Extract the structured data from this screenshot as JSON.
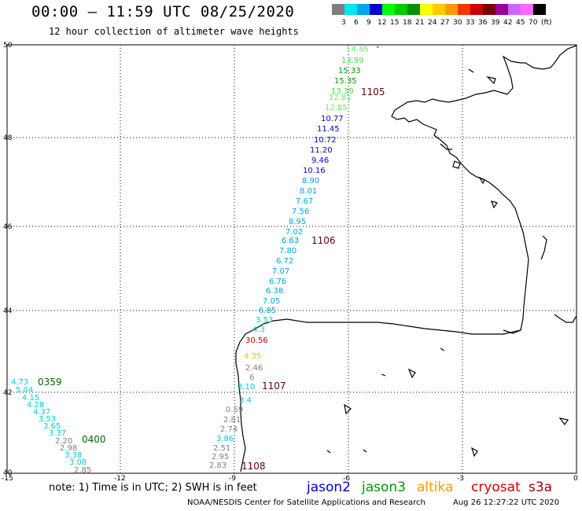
{
  "header": {
    "title": "00:00 – 11:59 UTC 08/25/2020",
    "subtitle": "12 hour collection of altimeter wave heights"
  },
  "legend": {
    "unit": "(ft)",
    "colors": [
      "#7f7f7f",
      "#00e5ee",
      "#00a6e6",
      "#0000d7",
      "#00ff00",
      "#00cc00",
      "#009200",
      "#ffff00",
      "#ffcc00",
      "#ff9900",
      "#ff3300",
      "#cc0000",
      "#7a0000",
      "#990099",
      "#cc66ff",
      "#ff66ff",
      "#000000"
    ],
    "ticks": [
      "3",
      "6",
      "9",
      "12",
      "15",
      "18",
      "21",
      "24",
      "27",
      "30",
      "33",
      "36",
      "39",
      "42",
      "45",
      "70"
    ]
  },
  "axes": {
    "x_labels": [
      "-15",
      "-12",
      "-9",
      "-6",
      "-3",
      "0"
    ],
    "y_labels": [
      "50",
      "48",
      "46",
      "44",
      "42",
      "40"
    ],
    "lon_range": [
      -15,
      0
    ],
    "lat_range": [
      40,
      50
    ],
    "grid": "dotted"
  },
  "tracks": {
    "main_track": {
      "pass_labels": [
        "1105",
        "1106",
        "1107",
        "1108"
      ],
      "values": [
        "14.45",
        "13.99",
        "15.33",
        "15.35",
        "13.39",
        "12.81",
        "12.85",
        "10.77",
        "11.45",
        "10.72",
        "11.20",
        "9.46",
        "10.16",
        "8.90",
        "8.01",
        "7.67",
        "7.56",
        "8.95",
        "7.02",
        "6.63",
        "7.80",
        "6.72",
        "7.07",
        "6.76",
        "6.38",
        "7.05",
        "6.85",
        "3.53",
        "4.3",
        "30.56",
        "4.35",
        "2.46",
        "6",
        "3.10",
        "3.4",
        "0.59",
        "2.81",
        "2.74",
        "3.86",
        "2.51",
        "2.95",
        "2.83"
      ]
    },
    "west_track": {
      "pass_labels": [
        "0359",
        "0400"
      ],
      "values": [
        "4.73",
        "5.04",
        "4.15",
        "4.28",
        "4.37",
        "3.53",
        "3.65",
        "3.37",
        "2.20",
        "2.98",
        "3.38",
        "3.08",
        "2.85"
      ]
    }
  },
  "satellites": {
    "jason2": {
      "label": "jason2",
      "color": "#0000cc"
    },
    "jason3": {
      "label": "jason3",
      "color": "#009900"
    },
    "altika": {
      "label": "altika",
      "color": "#ff9900"
    },
    "cryosat": {
      "label": "cryosat",
      "color": "#cc0000"
    },
    "s3a": {
      "label": "s3a",
      "color": "#990000"
    }
  },
  "footer": {
    "note": "note:  1) Time is in UTC;  2) SWH is in feet",
    "credit": "NOAA/NESDIS Center for Satellite Applications and Research",
    "timestamp": "Aug 26 12:27:22 UTC 2020"
  }
}
